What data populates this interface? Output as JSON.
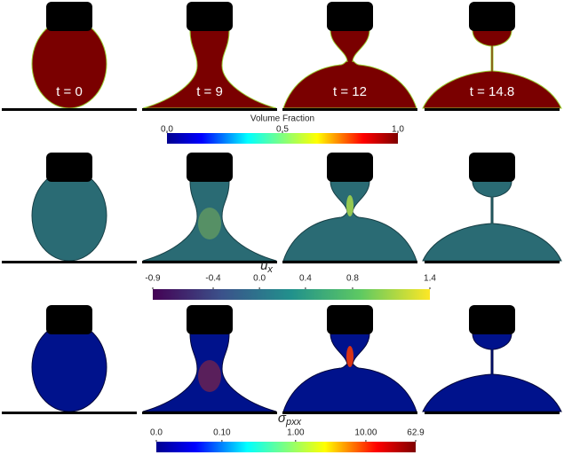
{
  "panels": [
    {
      "time_label": "t = 0"
    },
    {
      "time_label": "t = 9"
    },
    {
      "time_label": "t = 12"
    },
    {
      "time_label": "t = 14.8"
    }
  ],
  "colorbars": [
    {
      "title": "Volume Fraction",
      "ticks": [
        "0.0",
        "0.5",
        "1.0"
      ]
    },
    {
      "title": {
        "symbol": "u",
        "subscript": "x"
      },
      "ticks": [
        "-0.9",
        "-0.4",
        "0.0",
        "0.4",
        "0.8",
        "1.4"
      ]
    },
    {
      "title": {
        "symbol": "σ",
        "subscript": "pxx"
      },
      "ticks": [
        "0.0",
        "0.10",
        "1.00",
        "10.00",
        "62.9"
      ]
    }
  ]
}
